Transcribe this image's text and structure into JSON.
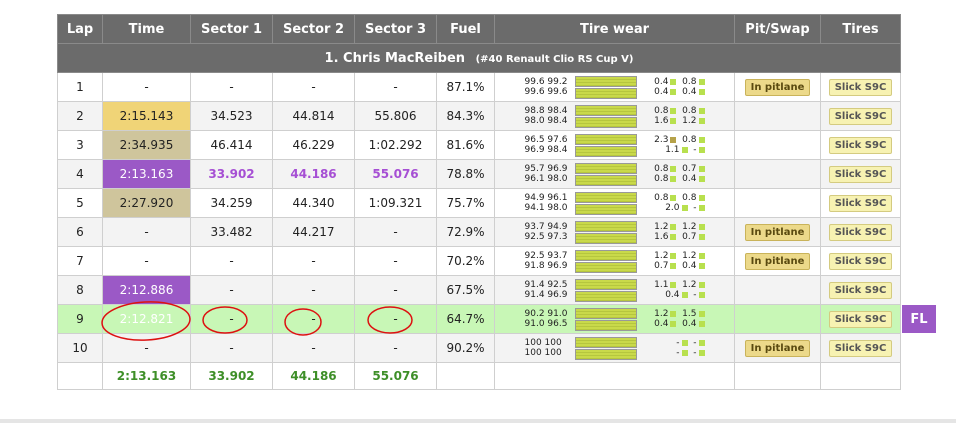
{
  "headers": [
    "Lap",
    "Time",
    "Sector 1",
    "Sector 2",
    "Sector 3",
    "Fuel",
    "Tire wear",
    "Pit/Swap",
    "Tires"
  ],
  "driver": {
    "name": "1. Chris MacReiben",
    "car": "(#40 Renault Clio RS Cup V)"
  },
  "laps": [
    {
      "lap": "1",
      "time": "-",
      "s1": "-",
      "s2": "-",
      "s3": "-",
      "fuel": "87.1%",
      "w1": "99.6 99.2",
      "w2": "99.6 99.6",
      "d1": "0.4 | 0.8",
      "d2": "0.4 | 0.4",
      "pit": "In pitlane",
      "tire": "Slick S9C"
    },
    {
      "lap": "2",
      "time": "2:15.143",
      "s1": "34.523",
      "s2": "44.814",
      "s3": "55.806",
      "fuel": "84.3%",
      "w1": "98.8 98.4",
      "w2": "98.0 98.4",
      "d1": "0.8 | 0.8",
      "d2": "1.6 | 1.2",
      "pit": "",
      "tire": "Slick S9C"
    },
    {
      "lap": "3",
      "time": "2:34.935",
      "s1": "46.414",
      "s2": "46.229",
      "s3": "1:02.292",
      "fuel": "81.6%",
      "w1": "96.5 97.6",
      "w2": "96.9 98.4",
      "d1": "2.3 | 0.8",
      "d2": "1.1 | -",
      "pit": "",
      "tire": "Slick S9C"
    },
    {
      "lap": "4",
      "time": "2:13.163",
      "s1": "33.902",
      "s2": "44.186",
      "s3": "55.076",
      "fuel": "78.8%",
      "w1": "95.7 96.9",
      "w2": "96.1 98.0",
      "d1": "0.8 | 0.7",
      "d2": "0.8 | 0.4",
      "pit": "",
      "tire": "Slick S9C"
    },
    {
      "lap": "5",
      "time": "2:27.920",
      "s1": "34.259",
      "s2": "44.340",
      "s3": "1:09.321",
      "fuel": "75.7%",
      "w1": "94.9 96.1",
      "w2": "94.1 98.0",
      "d1": "0.8 | 0.8",
      "d2": "2.0 | -",
      "pit": "",
      "tire": "Slick S9C"
    },
    {
      "lap": "6",
      "time": "-",
      "s1": "33.482",
      "s2": "44.217",
      "s3": "-",
      "fuel": "72.9%",
      "w1": "93.7 94.9",
      "w2": "92.5 97.3",
      "d1": "1.2 | 1.2",
      "d2": "1.6 | 0.7",
      "pit": "In pitlane",
      "tire": "Slick S9C"
    },
    {
      "lap": "7",
      "time": "-",
      "s1": "-",
      "s2": "-",
      "s3": "-",
      "fuel": "70.2%",
      "w1": "92.5 93.7",
      "w2": "91.8 96.9",
      "d1": "1.2 | 1.2",
      "d2": "0.7 | 0.4",
      "pit": "In pitlane",
      "tire": "Slick S9C"
    },
    {
      "lap": "8",
      "time": "2:12.886",
      "s1": "-",
      "s2": "-",
      "s3": "-",
      "fuel": "67.5%",
      "w1": "91.4 92.5",
      "w2": "91.4 96.9",
      "d1": "1.1 | 1.2",
      "d2": "0.4 | -",
      "pit": "",
      "tire": "Slick S9C"
    },
    {
      "lap": "9",
      "time": "2:12.821",
      "s1": "-",
      "s2": "-",
      "s3": "-",
      "fuel": "64.7%",
      "w1": "90.2 91.0",
      "w2": "91.0 96.5",
      "d1": "1.2 | 1.5",
      "d2": "0.4 | 0.4",
      "pit": "",
      "tire": "Slick S9C"
    },
    {
      "lap": "10",
      "time": "-",
      "s1": "-",
      "s2": "-",
      "s3": "-",
      "fuel": "90.2%",
      "w1": "100 100",
      "w2": "100 100",
      "d1": "- | -",
      "d2": "- | -",
      "pit": "In pitlane",
      "tire": "Slick S9C"
    }
  ],
  "totals": {
    "time": "2:13.163",
    "s1": "33.902",
    "s2": "44.186",
    "s3": "55.076"
  },
  "fastest_lap_badge": "FL"
}
